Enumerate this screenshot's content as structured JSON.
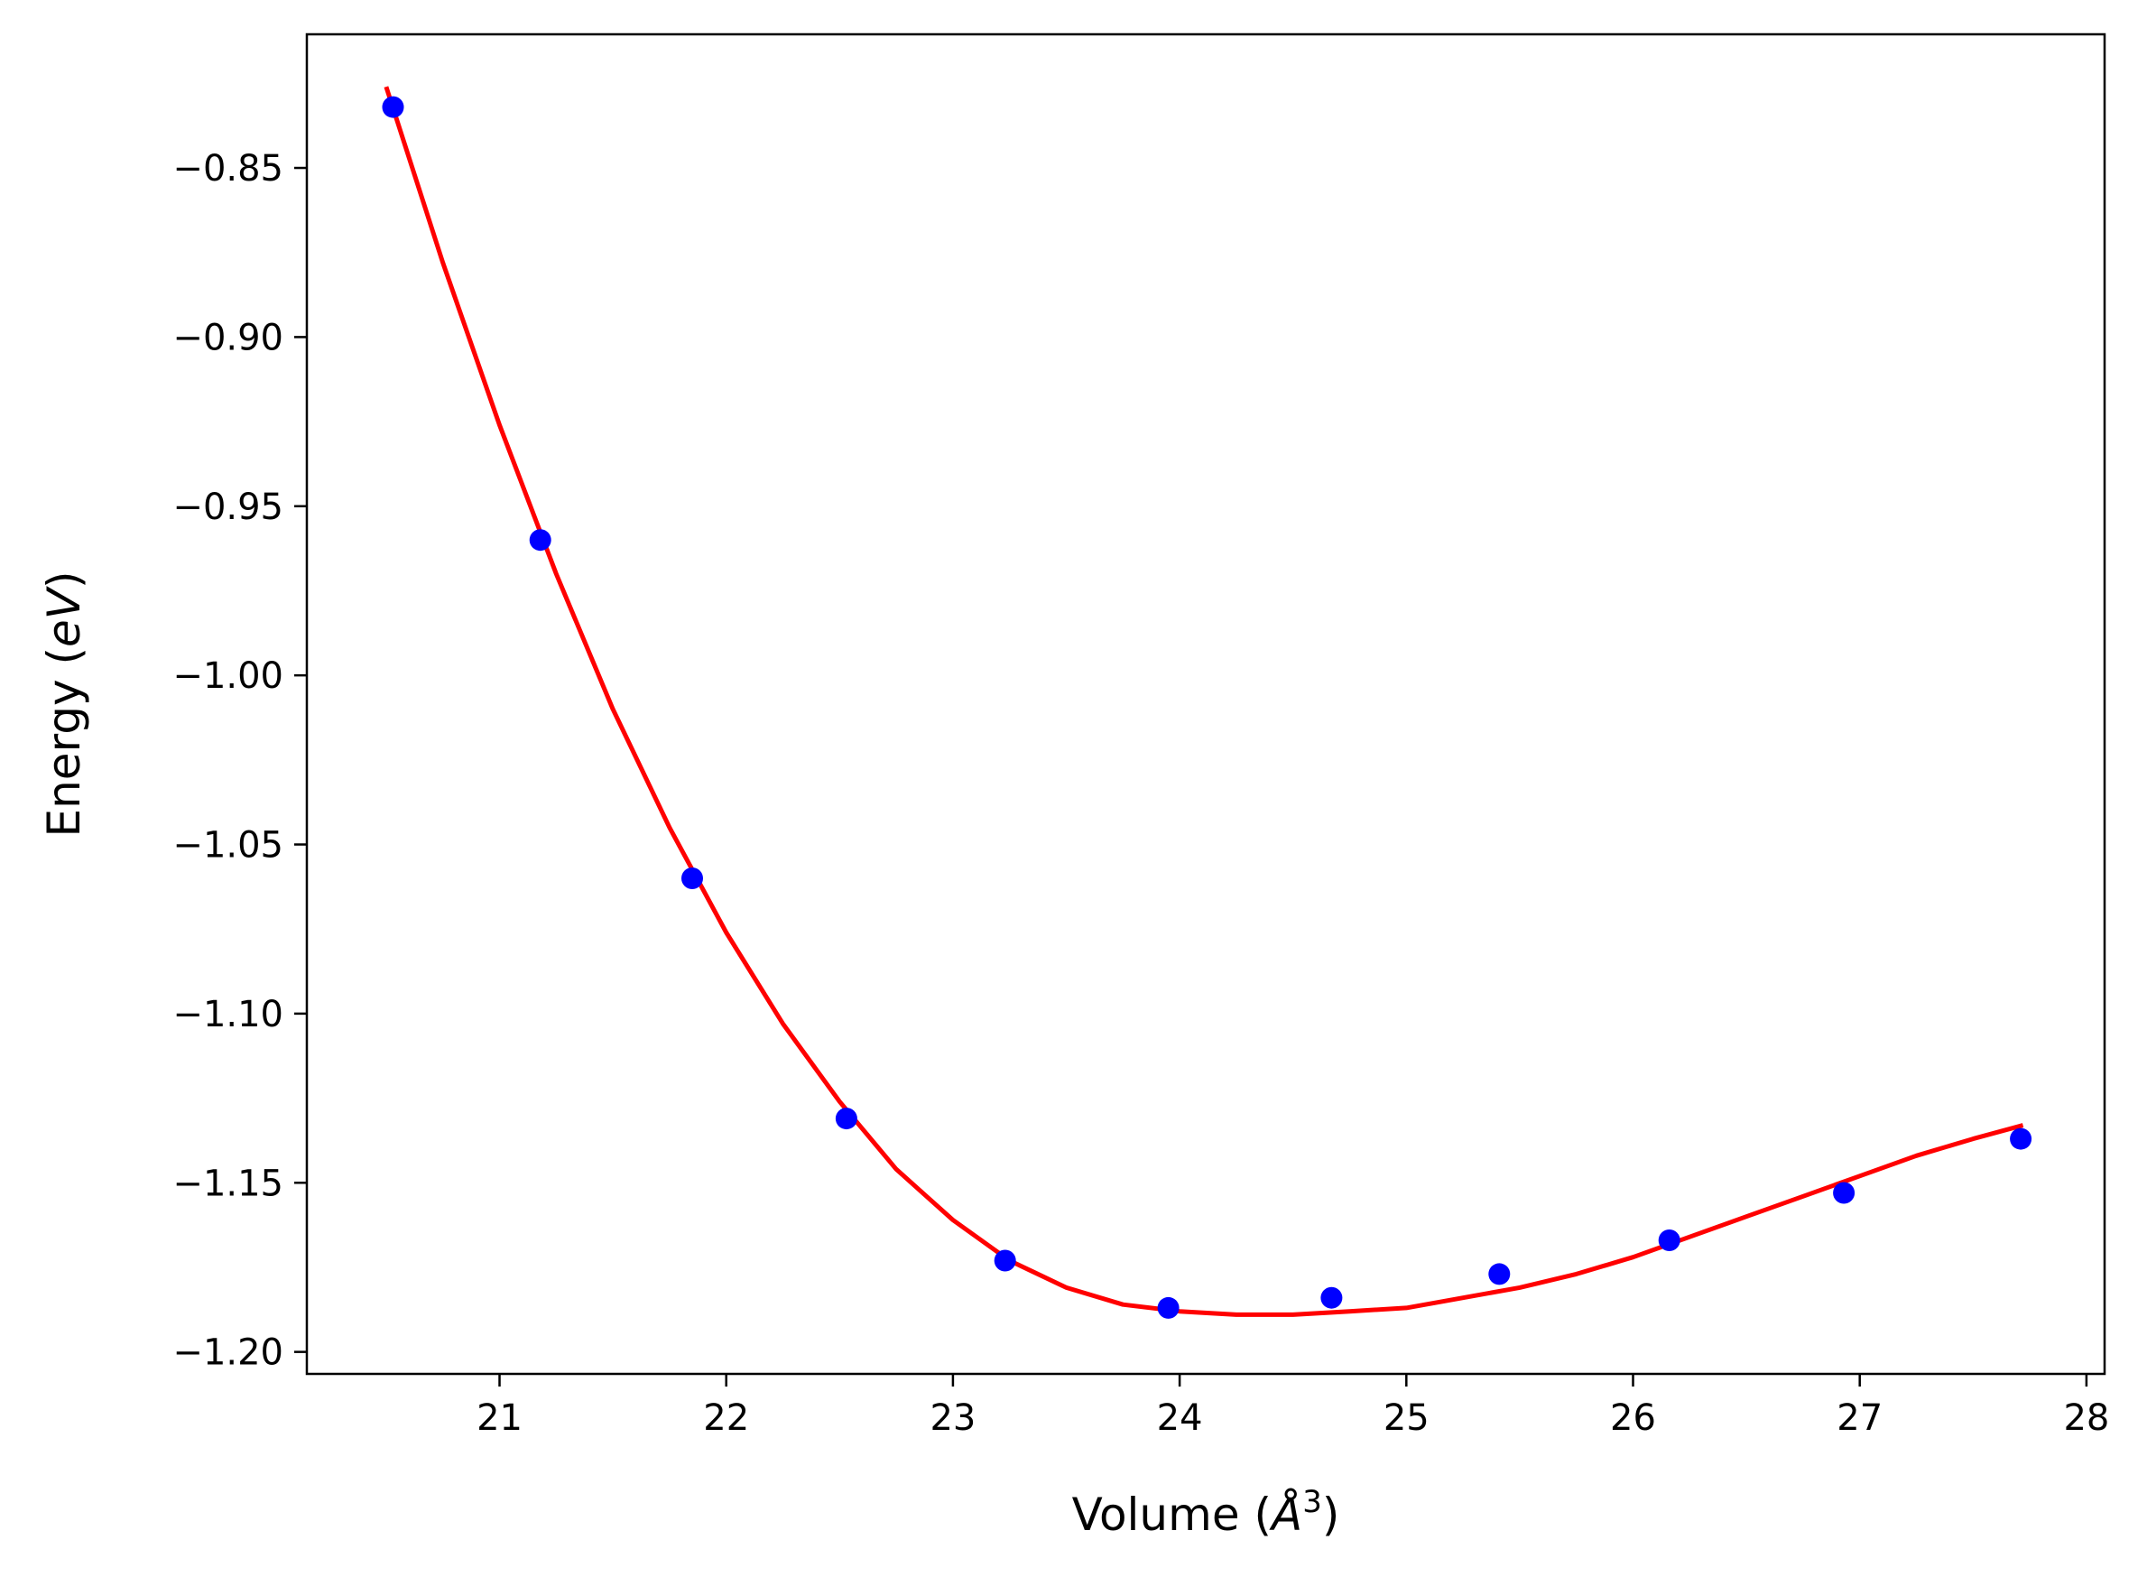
{
  "chart_data": {
    "type": "scatter",
    "xlabel_parts": {
      "prefix": "Volume (",
      "unit": "Å",
      "exponent": "3",
      "suffix": ")"
    },
    "ylabel_parts": {
      "prefix": "Energy (",
      "unit": "eV",
      "suffix": ")"
    },
    "xlim": [
      20.15,
      28.08
    ],
    "ylim": [
      -1.2065,
      -0.8105
    ],
    "x_ticks": [
      21,
      22,
      23,
      24,
      25,
      26,
      27,
      28
    ],
    "y_ticks": [
      -0.85,
      -0.9,
      -0.95,
      -1.0,
      -1.05,
      -1.1,
      -1.15,
      -1.2
    ],
    "y_tick_labels": [
      "−0.85",
      "−0.90",
      "−0.95",
      "−1.00",
      "−1.05",
      "−1.10",
      "−1.15",
      "−1.20"
    ],
    "grid": false,
    "series": [
      {
        "kind": "points",
        "color": "#0000ff",
        "x": [
          20.53,
          21.18,
          21.85,
          22.53,
          23.23,
          23.95,
          24.67,
          25.41,
          26.16,
          26.93,
          27.71
        ],
        "y": [
          -0.832,
          -0.96,
          -1.06,
          -1.131,
          -1.173,
          -1.187,
          -1.184,
          -1.177,
          -1.167,
          -1.153,
          -1.137
        ]
      },
      {
        "kind": "fit-curve",
        "color": "#ff0000",
        "x": [
          20.5,
          20.75,
          21.0,
          21.25,
          21.5,
          21.75,
          22.0,
          22.25,
          22.5,
          22.75,
          23.0,
          23.25,
          23.5,
          23.75,
          24.0,
          24.25,
          24.5,
          24.75,
          25.0,
          25.25,
          25.5,
          25.75,
          26.0,
          26.25,
          26.5,
          26.75,
          27.0,
          27.25,
          27.5,
          27.72
        ],
        "y": [
          -0.826,
          -0.878,
          -0.926,
          -0.97,
          -1.01,
          -1.045,
          -1.076,
          -1.103,
          -1.126,
          -1.146,
          -1.161,
          -1.173,
          -1.181,
          -1.186,
          -1.188,
          -1.189,
          -1.189,
          -1.188,
          -1.187,
          -1.184,
          -1.181,
          -1.177,
          -1.172,
          -1.166,
          -1.16,
          -1.154,
          -1.148,
          -1.142,
          -1.137,
          -1.133
        ]
      }
    ]
  }
}
